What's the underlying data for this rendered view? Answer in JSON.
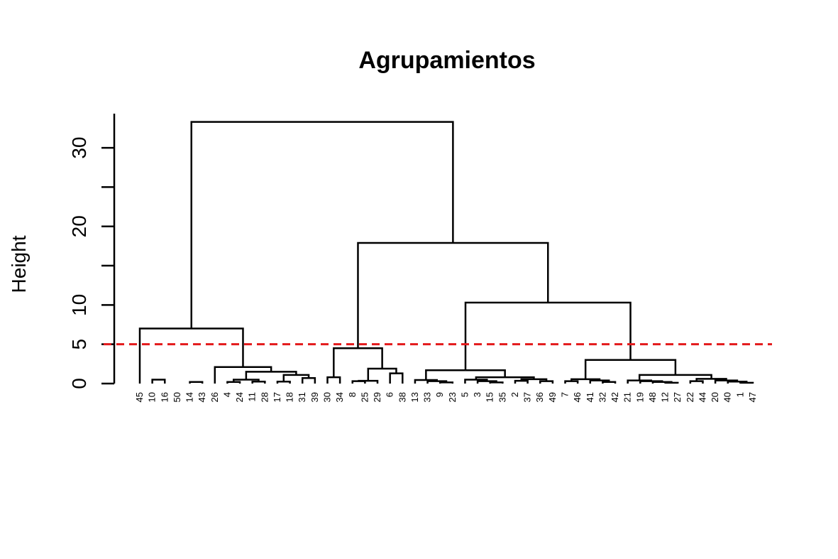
{
  "chart_data": {
    "type": "dendrogram",
    "title": "Agrupamientos",
    "xlabel": "",
    "ylabel": "Height",
    "ylim": [
      0,
      34.8
    ],
    "y_ticks": [
      0,
      5,
      10,
      15,
      20,
      25,
      30
    ],
    "y_tick_labels": [
      "0",
      "5",
      "10",
      "",
      "20",
      "",
      "30"
    ],
    "cut_height": 5,
    "cut_line_color": "#e31a1c",
    "line_color": "#000000",
    "leaf_order": [
      "45",
      "10",
      "16",
      "50",
      "14",
      "43",
      "26",
      "4",
      "24",
      "11",
      "28",
      "17",
      "18",
      "31",
      "39",
      "30",
      "34",
      "8",
      "25",
      "29",
      "6",
      "38",
      "13",
      "33",
      "9",
      "23",
      "5",
      "3",
      "15",
      "35",
      "2",
      "37",
      "36",
      "49",
      "7",
      "46",
      "41",
      "32",
      "42",
      "21",
      "19",
      "48",
      "12",
      "27",
      "22",
      "44",
      "20",
      "40",
      "1",
      "47"
    ],
    "merges": [
      {
        "id": "c1",
        "children": [
          "45",
          "c5"
        ],
        "height": 1.2
      },
      {
        "id": "c2",
        "children": [
          "10",
          "16"
        ],
        "height": 0.5
      },
      {
        "id": "c3",
        "children": [
          "50",
          "c4"
        ],
        "height": 0.55
      },
      {
        "id": "c4",
        "children": [
          "14",
          "43"
        ],
        "height": 0.2
      },
      {
        "id": "c5",
        "children": [
          "c2",
          "c6"
        ],
        "height": 1.1
      },
      {
        "id": "c6",
        "children": [
          "c3",
          "c3b"
        ],
        "height": 0.85
      },
      {
        "id": "c3b",
        "children": [],
        "height": 0
      },
      {
        "id": "g_left_small",
        "children": [
          "c1"
        ],
        "height": 1.2
      },
      {
        "id": "d1",
        "children": [
          "4",
          "24"
        ],
        "height": 0.2
      },
      {
        "id": "d2",
        "children": [
          "11",
          "28"
        ],
        "height": 0.25
      },
      {
        "id": "d3",
        "children": [
          "d1",
          "d2"
        ],
        "height": 0.5
      },
      {
        "id": "d4",
        "children": [
          "17",
          "18"
        ],
        "height": 0.25
      },
      {
        "id": "d5",
        "children": [
          "31",
          "39"
        ],
        "height": 0.7
      },
      {
        "id": "d6",
        "children": [
          "d4",
          "d5"
        ],
        "height": 1.1
      },
      {
        "id": "d7",
        "children": [
          "d3",
          "d6"
        ],
        "height": 1.5
      },
      {
        "id": "d8",
        "children": [
          "26",
          "d7"
        ],
        "height": 2.1
      },
      {
        "id": "A",
        "children": [
          "g_left_small",
          "d8"
        ],
        "height": 7.0
      },
      {
        "id": "e1",
        "children": [
          "30",
          "34"
        ],
        "height": 0.8
      },
      {
        "id": "e2",
        "children": [
          "8",
          "25"
        ],
        "height": 0.3
      },
      {
        "id": "e3",
        "children": [
          "e2",
          "29"
        ],
        "height": 0.35
      },
      {
        "id": "e4",
        "children": [
          "6",
          "38"
        ],
        "height": 1.3
      },
      {
        "id": "e5",
        "children": [
          "e3",
          "e4"
        ],
        "height": 1.9
      },
      {
        "id": "B",
        "children": [
          "e1",
          "e5"
        ],
        "height": 4.5
      },
      {
        "id": "f1",
        "children": [
          "9",
          "23"
        ],
        "height": 0.15
      },
      {
        "id": "f2",
        "children": [
          "33",
          "f1"
        ],
        "height": 0.3
      },
      {
        "id": "f3",
        "children": [
          "13",
          "f2"
        ],
        "height": 0.45
      },
      {
        "id": "f4",
        "children": [
          "15",
          "35"
        ],
        "height": 0.15
      },
      {
        "id": "f5",
        "children": [
          "3",
          "f4"
        ],
        "height": 0.3
      },
      {
        "id": "f6",
        "children": [
          "5",
          "f5"
        ],
        "height": 0.5
      },
      {
        "id": "f7",
        "children": [
          "2",
          "37"
        ],
        "height": 0.35
      },
      {
        "id": "f8",
        "children": [
          "36",
          "49"
        ],
        "height": 0.3
      },
      {
        "id": "f9",
        "children": [
          "f7",
          "f8"
        ],
        "height": 0.55
      },
      {
        "id": "f10",
        "children": [
          "f6",
          "f9"
        ],
        "height": 0.8
      },
      {
        "id": "C",
        "children": [
          "f3",
          "f10"
        ],
        "height": 1.7
      },
      {
        "id": "g1",
        "children": [
          "7",
          "46"
        ],
        "height": 0.3
      },
      {
        "id": "g2",
        "children": [
          "32",
          "42"
        ],
        "height": 0.2
      },
      {
        "id": "g3",
        "children": [
          "41",
          "g2"
        ],
        "height": 0.4
      },
      {
        "id": "g4",
        "children": [
          "g1",
          "g3"
        ],
        "height": 0.55
      },
      {
        "id": "h1",
        "children": [
          "12",
          "27"
        ],
        "height": 0.1
      },
      {
        "id": "h2",
        "children": [
          "48",
          "h1"
        ],
        "height": 0.2
      },
      {
        "id": "h3",
        "children": [
          "19",
          "h2"
        ],
        "height": 0.3
      },
      {
        "id": "h4",
        "children": [
          "21",
          "h3"
        ],
        "height": 0.4
      },
      {
        "id": "h5",
        "children": [
          "1",
          "47"
        ],
        "height": 0.1
      },
      {
        "id": "h6",
        "children": [
          "40",
          "h5"
        ],
        "height": 0.25
      },
      {
        "id": "h7",
        "children": [
          "20",
          "h6"
        ],
        "height": 0.4
      },
      {
        "id": "h8",
        "children": [
          "22",
          "44"
        ],
        "height": 0.3
      },
      {
        "id": "h9",
        "children": [
          "h8",
          "h7"
        ],
        "height": 0.6
      },
      {
        "id": "h10",
        "children": [
          "h4",
          "h9"
        ],
        "height": 1.1
      },
      {
        "id": "D",
        "children": [
          "g4",
          "h10"
        ],
        "height": 3.0
      },
      {
        "id": "E",
        "children": [
          "C",
          "D"
        ],
        "height": 10.3
      },
      {
        "id": "F",
        "children": [
          "B",
          "E"
        ],
        "height": 17.9
      },
      {
        "id": "ROOT",
        "children": [
          "A",
          "F"
        ],
        "height": 33.3
      }
    ]
  }
}
